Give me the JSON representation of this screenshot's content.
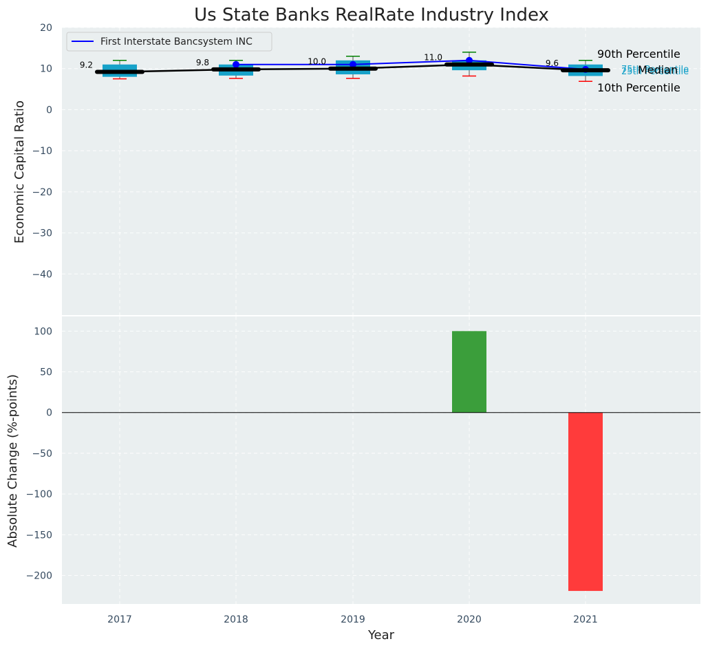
{
  "chart_data": [
    {
      "type": "box",
      "title": "Us State Banks RealRate Industry Index",
      "ylabel": "Economic Capital Ratio",
      "ylim": [
        -50,
        20
      ],
      "yticks": [
        -40,
        -30,
        -20,
        -10,
        0,
        10,
        20
      ],
      "categories": [
        "2017",
        "2018",
        "2019",
        "2020",
        "2021"
      ],
      "median": [
        9.2,
        9.8,
        10.0,
        11.0,
        9.6
      ],
      "median_labels": [
        "9.2",
        "9.8",
        "10.0",
        "11.0",
        "9.6"
      ],
      "q25": [
        8.0,
        8.3,
        8.6,
        9.6,
        8.2
      ],
      "q75": [
        11.0,
        11.0,
        12.0,
        12.0,
        11.0
      ],
      "p10": [
        7.5,
        7.6,
        7.6,
        8.2,
        6.9
      ],
      "p90": [
        12.0,
        12.0,
        13.0,
        14.0,
        12.0
      ],
      "series": [
        {
          "name": "First Interstate Bancsystem INC",
          "values": [
            null,
            11.0,
            11.0,
            12.0,
            9.8
          ]
        }
      ],
      "legend": {
        "position": "top-left"
      },
      "annotations": {
        "p90": "90th Percentile",
        "q75": "75th Percentile",
        "median": "Median",
        "q25": "25th Percentile",
        "p10": "10th Percentile"
      },
      "grid": true,
      "colors": {
        "box": "#17a2c9",
        "line": "#0000ff",
        "median": "#000000",
        "p90_cap": "#008000",
        "p10_cap": "#ff0000",
        "background": "#eaeff0"
      }
    },
    {
      "type": "bar",
      "xlabel": "Year",
      "ylabel": "Absolute Change (%-points)",
      "ylim": [
        -235,
        118
      ],
      "yticks": [
        -200,
        -150,
        -100,
        -50,
        0,
        50,
        100
      ],
      "categories": [
        "2017",
        "2018",
        "2019",
        "2020",
        "2021"
      ],
      "values": [
        null,
        null,
        0,
        100,
        -219
      ],
      "grid": true,
      "colors": {
        "positive": "#3b9e3b",
        "negative": "#ff3b3b"
      }
    }
  ]
}
